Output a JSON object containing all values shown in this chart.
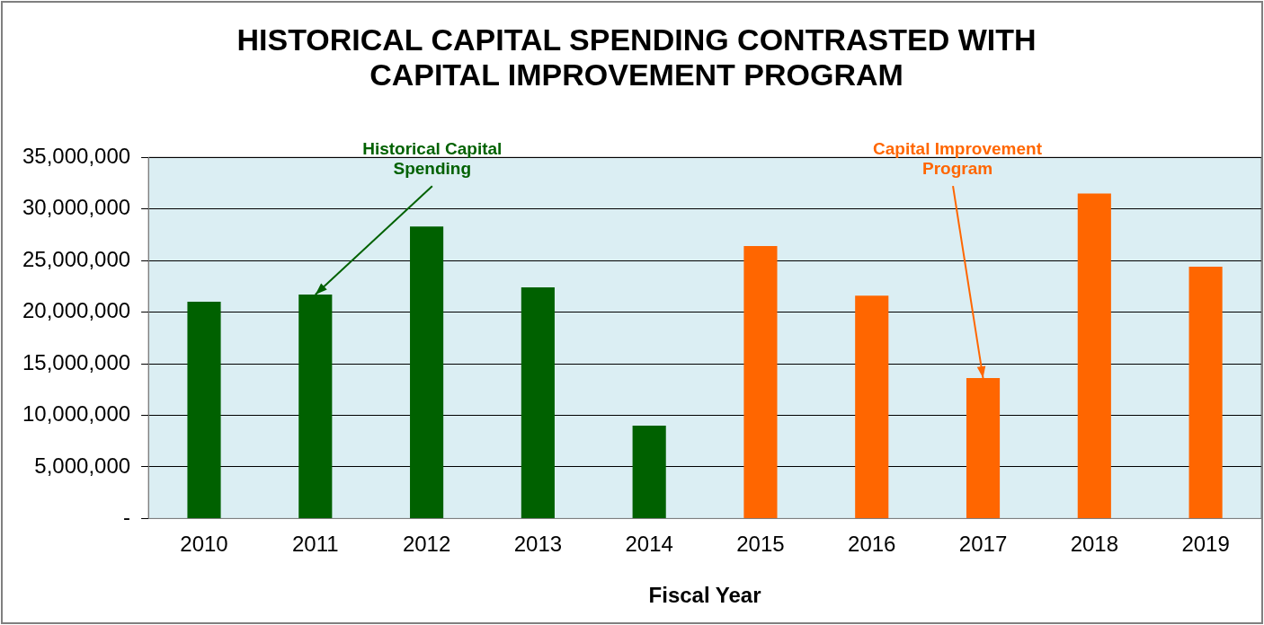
{
  "chart_data": {
    "type": "bar",
    "title": "HISTORICAL CAPITAL SPENDING CONTRASTED WITH CAPITAL IMPROVEMENT PROGRAM",
    "xlabel": "Fiscal Year",
    "categories": [
      "2010",
      "2011",
      "2012",
      "2013",
      "2014",
      "2015",
      "2016",
      "2017",
      "2018",
      "2019"
    ],
    "series": [
      {
        "color": "#006100",
        "values": [
          21000000,
          21700000,
          28300000,
          22400000,
          9000000,
          null,
          null,
          null,
          null,
          null
        ]
      },
      {
        "color": "#ff6600",
        "values": [
          null,
          null,
          null,
          null,
          null,
          26400000,
          21600000,
          13600000,
          31500000,
          24400000
        ]
      }
    ],
    "ylim": [
      0,
      35000000
    ],
    "yticks": [
      {
        "value": 0,
        "label": "-"
      },
      {
        "value": 5000000,
        "label": "5,000,000"
      },
      {
        "value": 10000000,
        "label": "10,000,000"
      },
      {
        "value": 15000000,
        "label": "15,000,000"
      },
      {
        "value": 20000000,
        "label": "20,000,000"
      },
      {
        "value": 25000000,
        "label": "25,000,000"
      },
      {
        "value": 30000000,
        "label": "30,000,000"
      },
      {
        "value": 35000000,
        "label": "35,000,000"
      }
    ],
    "grid": "y",
    "legend": false,
    "annotations": [
      {
        "text": "Historical Capital Spending",
        "x": "2011",
        "y": 21700000
      },
      {
        "text": "Capital Improvement Program",
        "x": "2017",
        "y": 13600000
      }
    ]
  }
}
